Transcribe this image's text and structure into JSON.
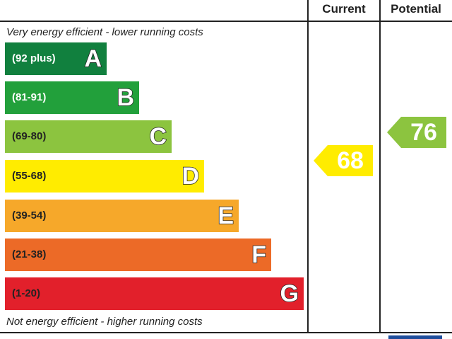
{
  "header": {
    "current": "Current",
    "potential": "Potential"
  },
  "top_note": "Very energy efficient - lower running costs",
  "bottom_note": "Not energy efficient - higher running costs",
  "bands": [
    {
      "range": "(92 plus)",
      "letter": "A"
    },
    {
      "range": "(81-91)",
      "letter": "B"
    },
    {
      "range": "(69-80)",
      "letter": "C"
    },
    {
      "range": "(55-68)",
      "letter": "D"
    },
    {
      "range": "(39-54)",
      "letter": "E"
    },
    {
      "range": "(21-38)",
      "letter": "F"
    },
    {
      "range": "(1-20)",
      "letter": "G"
    }
  ],
  "current": {
    "value": 68
  },
  "potential": {
    "value": 76
  }
}
